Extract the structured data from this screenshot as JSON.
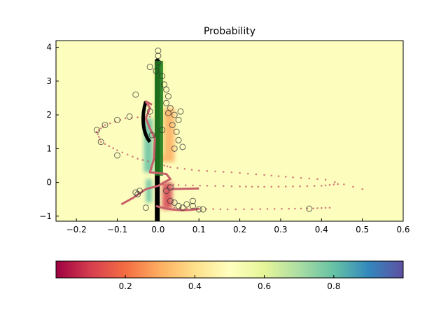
{
  "chart_data": [
    {
      "type": "heatmap",
      "title": "Probability",
      "xlabel": "",
      "ylabel": "",
      "xlim": [
        -0.25,
        0.6
      ],
      "ylim": [
        -1.15,
        4.2
      ],
      "x_ticks": [
        -0.2,
        -0.1,
        0.0,
        0.1,
        0.2,
        0.3,
        0.4,
        0.5,
        0.6
      ],
      "x_tick_labels": [
        "−0.2",
        "−0.1",
        "0.0",
        "0.1",
        "0.2",
        "0.3",
        "0.4",
        "0.5",
        "0.6"
      ],
      "y_ticks": [
        -1,
        0,
        1,
        2,
        3,
        4
      ],
      "y_tick_labels": [
        "−1",
        "0",
        "1",
        "2",
        "3",
        "4"
      ],
      "background_value": 0.5,
      "colors": {
        "background": "#fdfebd",
        "trajectory": "#c8606a",
        "markers_edge": "#333333",
        "dense_green": "#1f7a1f",
        "black_contour": "#000000"
      },
      "heat_regions": [
        {
          "x": [
            -0.035,
            -0.012
          ],
          "y": [
            0.3,
            1.9
          ],
          "value": 0.85
        },
        {
          "x": [
            -0.03,
            -0.015
          ],
          "y": [
            -0.6,
            0.1
          ],
          "value": 0.8
        },
        {
          "x": [
            0.01,
            0.035
          ],
          "y": [
            -0.8,
            0.0
          ],
          "value": 0.1
        },
        {
          "x": [
            0.005,
            0.04
          ],
          "y": [
            0.6,
            2.2
          ],
          "value": 0.25
        },
        {
          "x": [
            -0.01,
            0.015
          ],
          "y": [
            0.8,
            3.6
          ],
          "value": 0.62
        }
      ],
      "trajectory_path": [
        [
          -0.015,
          2.3
        ],
        [
          -0.03,
          2.4
        ],
        [
          -0.02,
          2.2
        ],
        [
          -0.03,
          1.9
        ],
        [
          -0.02,
          1.6
        ],
        [
          -0.008,
          1.3
        ],
        [
          -0.01,
          0.7
        ],
        [
          -0.02,
          0.3
        ],
        [
          0.02,
          0.25
        ],
        [
          0.03,
          0.1
        ],
        [
          0.0,
          -0.1
        ],
        [
          -0.03,
          -0.2
        ],
        [
          -0.06,
          -0.45
        ],
        [
          -0.09,
          -0.65
        ]
      ],
      "dotted_tracks": [
        {
          "points": [
            [
              -0.02,
              1.95
            ],
            [
              -0.08,
              1.9
            ],
            [
              -0.13,
              1.7
            ],
            [
              -0.15,
              1.5
            ],
            [
              -0.14,
              1.2
            ],
            [
              -0.1,
              0.95
            ],
            [
              -0.05,
              0.7
            ],
            [
              0.0,
              0.55
            ],
            [
              0.03,
              0.45
            ],
            [
              0.1,
              0.35
            ],
            [
              0.18,
              0.3
            ],
            [
              0.26,
              0.22
            ],
            [
              0.33,
              0.15
            ],
            [
              0.41,
              0.08
            ],
            [
              0.5,
              -0.2
            ]
          ]
        },
        {
          "points": [
            [
              0.0,
              -0.05
            ],
            [
              0.05,
              -0.08
            ],
            [
              0.12,
              -0.1
            ],
            [
              0.2,
              -0.12
            ],
            [
              0.26,
              -0.13
            ],
            [
              0.33,
              -0.12
            ],
            [
              0.4,
              -0.1
            ],
            [
              0.44,
              -0.05
            ]
          ]
        },
        {
          "points": [
            [
              0.04,
              -0.75
            ],
            [
              0.1,
              -0.78
            ],
            [
              0.17,
              -0.8
            ],
            [
              0.25,
              -0.79
            ],
            [
              0.32,
              -0.78
            ],
            [
              0.38,
              -0.77
            ],
            [
              0.42,
              -0.75
            ]
          ]
        }
      ],
      "markers": [
        [
          -0.02,
          3.42
        ],
        [
          0.0,
          3.9
        ],
        [
          0.0,
          3.75
        ],
        [
          0.0,
          3.55
        ],
        [
          -0.005,
          3.3
        ],
        [
          0.01,
          3.15
        ],
        [
          -0.055,
          2.6
        ],
        [
          0.015,
          2.9
        ],
        [
          0.02,
          2.75
        ],
        [
          0.025,
          2.55
        ],
        [
          0.02,
          2.35
        ],
        [
          0.03,
          2.2
        ],
        [
          0.025,
          2.05
        ],
        [
          0.04,
          2.0
        ],
        [
          0.05,
          1.85
        ],
        [
          0.035,
          1.7
        ],
        [
          0.045,
          1.5
        ],
        [
          0.05,
          1.25
        ],
        [
          0.06,
          1.05
        ],
        [
          0.04,
          1.0
        ],
        [
          0.055,
          2.1
        ],
        [
          -0.07,
          1.95
        ],
        [
          -0.1,
          1.85
        ],
        [
          -0.13,
          1.7
        ],
        [
          -0.15,
          1.55
        ],
        [
          -0.14,
          1.2
        ],
        [
          -0.1,
          0.8
        ],
        [
          -0.055,
          -0.3
        ],
        [
          -0.05,
          -0.35
        ],
        [
          -0.045,
          -0.25
        ],
        [
          0.03,
          -0.55
        ],
        [
          0.04,
          -0.6
        ],
        [
          0.05,
          -0.7
        ],
        [
          0.06,
          -0.75
        ],
        [
          0.07,
          -0.65
        ],
        [
          0.085,
          -0.55
        ],
        [
          0.085,
          -0.7
        ],
        [
          0.1,
          -0.8
        ],
        [
          0.11,
          -0.8
        ],
        [
          -0.03,
          -0.75
        ],
        [
          0.37,
          -0.78
        ],
        [
          0.03,
          -0.15
        ],
        [
          0.02,
          -0.25
        ],
        [
          -0.015,
          1.4
        ],
        [
          0.01,
          1.55
        ],
        [
          -0.02,
          2.1
        ]
      ]
    },
    {
      "type": "heatmap",
      "title": "",
      "colorbar": true,
      "colormap": "Spectral",
      "range": [
        0.0,
        1.0
      ],
      "ticks": [
        0.2,
        0.4,
        0.6,
        0.8
      ],
      "tick_labels": [
        "0.2",
        "0.4",
        "0.6",
        "0.8"
      ]
    }
  ]
}
